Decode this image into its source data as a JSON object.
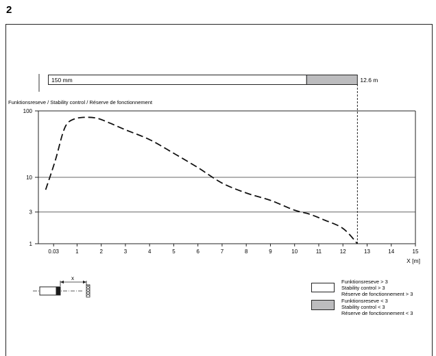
{
  "figure_number": "2",
  "range_bar": {
    "start_label": "150 mm",
    "end_label": "12.6 m",
    "range_end_m": 12.6,
    "fill_color": "#bcbcbe"
  },
  "chart_data": {
    "type": "line",
    "title": "Funktionsreseve / Stability control / Réserve de fonctionnement",
    "xlabel": "X [m]",
    "x_ticks": [
      "0.03",
      "1",
      "2",
      "3",
      "4",
      "5",
      "6",
      "7",
      "8",
      "9",
      "10",
      "11",
      "12",
      "13",
      "14",
      "15"
    ],
    "x_tick_values": [
      0.03,
      1,
      2,
      3,
      4,
      5,
      6,
      7,
      8,
      9,
      10,
      11,
      12,
      13,
      14,
      15
    ],
    "y_ticks": [
      "1",
      "3",
      "10",
      "100"
    ],
    "y_tick_values": [
      1,
      3,
      10,
      100
    ],
    "y_scale": "log",
    "xlim": [
      -0.6,
      15
    ],
    "ylim": [
      1,
      100
    ],
    "series": [
      {
        "line_style": "dashed",
        "points": [
          [
            -0.3,
            6.5
          ],
          [
            0.1,
            18
          ],
          [
            0.4,
            45
          ],
          [
            0.6,
            65
          ],
          [
            0.9,
            76
          ],
          [
            1.3,
            80
          ],
          [
            1.8,
            78
          ],
          [
            2.3,
            67
          ],
          [
            3.0,
            52
          ],
          [
            4.0,
            37
          ],
          [
            5.0,
            23
          ],
          [
            6.0,
            14
          ],
          [
            7.0,
            8.2
          ],
          [
            8.0,
            5.8
          ],
          [
            9.0,
            4.5
          ],
          [
            10.0,
            3.2
          ],
          [
            10.6,
            2.8
          ],
          [
            11.2,
            2.3
          ],
          [
            12.0,
            1.7
          ],
          [
            12.6,
            1.0
          ]
        ]
      }
    ],
    "reference_lines_y": [
      3,
      10
    ],
    "marker_x": 12.6
  },
  "sensor_diagram": {
    "distance_label": "x"
  },
  "legend": [
    {
      "swatch_color": "#ffffff",
      "lines": [
        "Funktionsreseve > 3",
        "Stability control > 3",
        "Réserve de fonctionnement > 3"
      ]
    },
    {
      "swatch_color": "#bcbcbe",
      "lines": [
        "Funktionsreseve < 3",
        "Stability control < 3",
        "Réserve de fonctionnement < 3"
      ]
    }
  ]
}
